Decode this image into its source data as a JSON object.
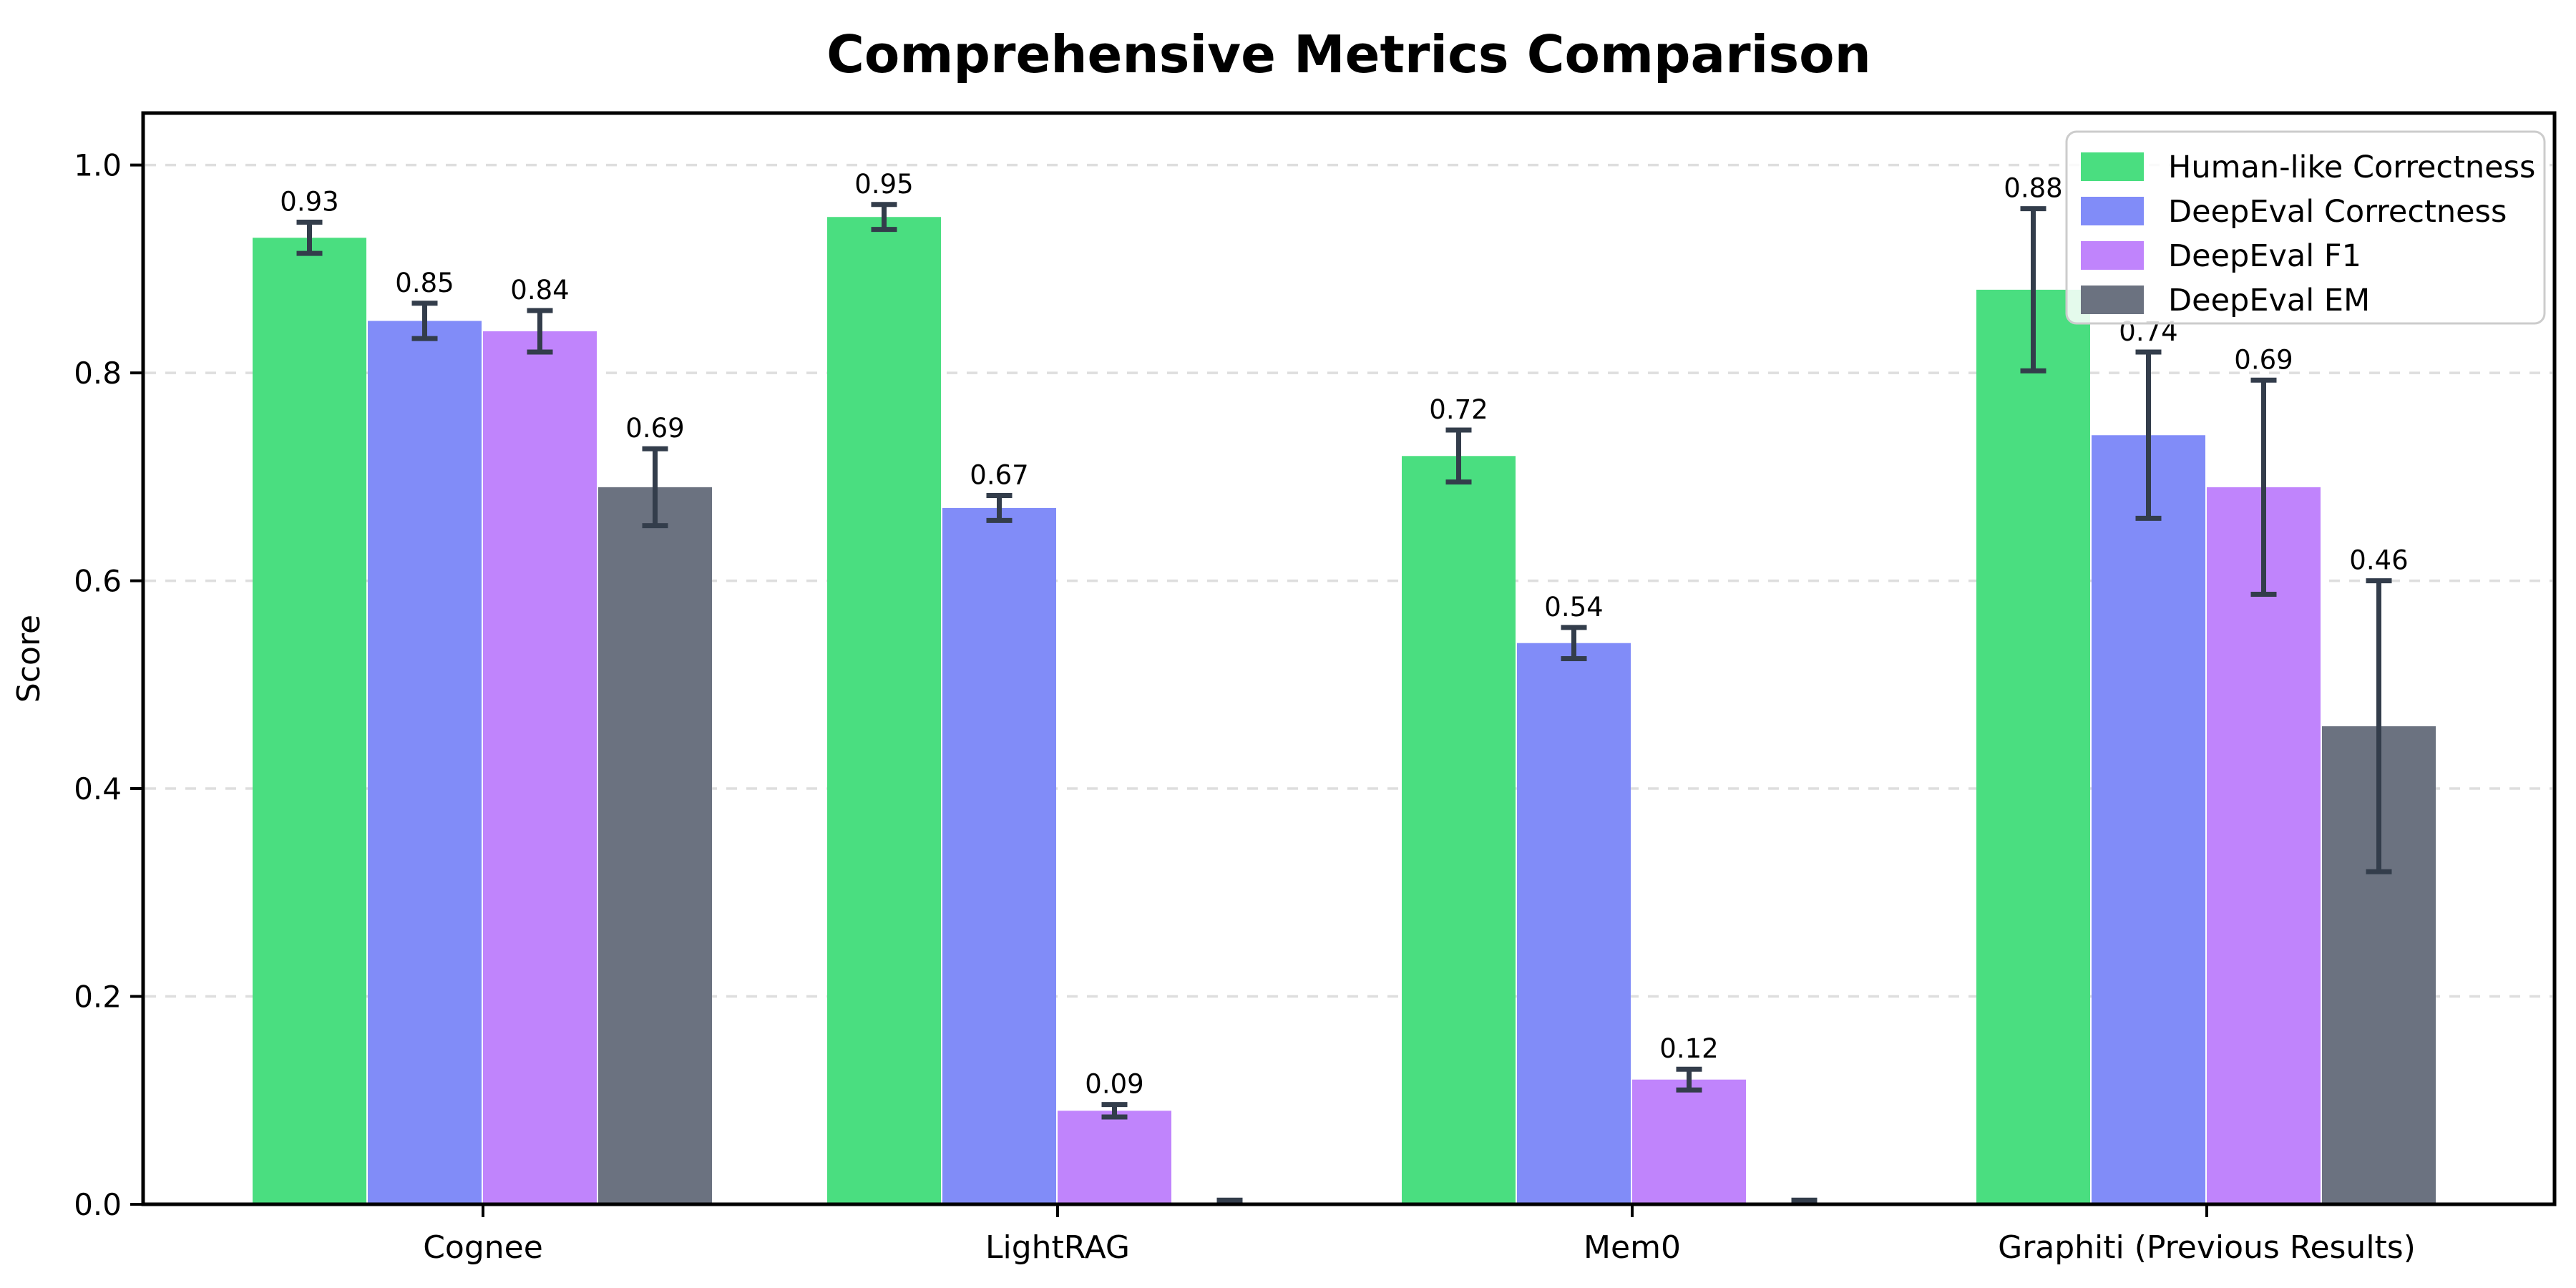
{
  "chart_data": {
    "type": "bar",
    "title": "Comprehensive Metrics Comparison",
    "ylabel": "Score",
    "xlabel": "",
    "categories": [
      "Cognee",
      "LightRAG",
      "Mem0",
      "Graphiti (Previous Results)"
    ],
    "series": [
      {
        "name": "Human-like Correctness",
        "color": "#4ade80",
        "values": [
          0.93,
          0.95,
          0.72,
          0.88
        ],
        "errors": [
          0.015,
          0.012,
          0.025,
          0.078
        ],
        "value_labels": [
          "0.93",
          "0.95",
          "0.72",
          "0.88"
        ]
      },
      {
        "name": "DeepEval Correctness",
        "color": "#818cf8",
        "values": [
          0.85,
          0.67,
          0.54,
          0.74
        ],
        "errors": [
          0.017,
          0.012,
          0.015,
          0.08
        ],
        "value_labels": [
          "0.85",
          "0.67",
          "0.54",
          "0.74"
        ]
      },
      {
        "name": "DeepEval F1",
        "color": "#c084fc",
        "values": [
          0.84,
          0.09,
          0.12,
          0.69
        ],
        "errors": [
          0.02,
          0.006,
          0.01,
          0.103
        ],
        "value_labels": [
          "0.84",
          "0.09",
          "0.12",
          "0.69"
        ]
      },
      {
        "name": "DeepEval EM",
        "color": "#6b7280",
        "values": [
          0.69,
          0.0,
          0.0,
          0.46
        ],
        "errors": [
          0.037,
          0.004,
          0.004,
          0.14
        ],
        "value_labels": [
          "0.69",
          null,
          null,
          "0.46"
        ]
      }
    ],
    "ytick_labels": [
      "0.0",
      "0.2",
      "0.4",
      "0.6",
      "0.8",
      "1.0"
    ],
    "yticks": [
      0.0,
      0.2,
      0.4,
      0.6,
      0.8,
      1.0
    ],
    "ylim": [
      0.0,
      1.05
    ],
    "grid": {
      "axis": "y",
      "style": "dashed",
      "color": "#dedede"
    },
    "legend": {
      "position": "upper right",
      "entries": [
        "Human-like Correctness",
        "DeepEval Correctness",
        "DeepEval F1",
        "DeepEval EM"
      ]
    },
    "error_bar_color": "#333d4b",
    "axis_color": "#000000",
    "background_color": "#ffffff"
  }
}
